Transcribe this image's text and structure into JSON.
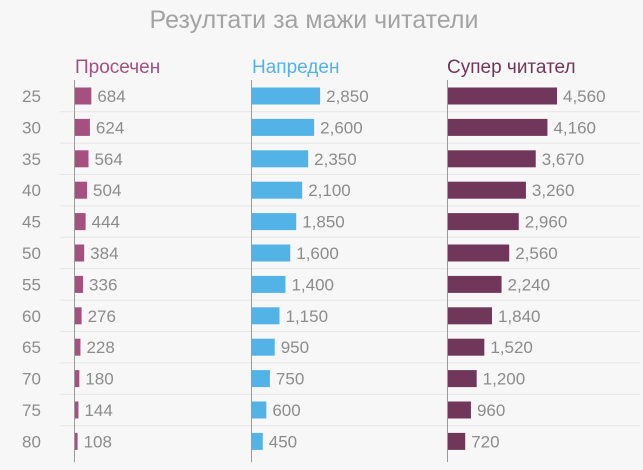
{
  "chart_data": {
    "type": "bar",
    "orientation": "horizontal",
    "layout": "small-multiples",
    "title": "Резултати за мажи читатели",
    "categories": [
      "25",
      "30",
      "35",
      "40",
      "45",
      "50",
      "55",
      "60",
      "65",
      "70",
      "75",
      "80"
    ],
    "series": [
      {
        "name": "Просечен",
        "color": "#a5507f",
        "values": [
          684,
          624,
          564,
          504,
          444,
          384,
          336,
          276,
          228,
          180,
          144,
          108
        ],
        "labels": [
          "684",
          "624",
          "564",
          "504",
          "444",
          "384",
          "336",
          "276",
          "228",
          "180",
          "144",
          "108"
        ]
      },
      {
        "name": "Напреден",
        "color": "#53b3e6",
        "values": [
          2850,
          2600,
          2350,
          2100,
          1850,
          1600,
          1400,
          1150,
          950,
          750,
          600,
          450
        ],
        "labels": [
          "2,850",
          "2,600",
          "2,350",
          "2,100",
          "1,850",
          "1,600",
          "1,400",
          "1,150",
          "950",
          "750",
          "600",
          "450"
        ]
      },
      {
        "name": "Супер читател",
        "color": "#70375a",
        "values": [
          4560,
          4160,
          3670,
          3260,
          2960,
          2560,
          2240,
          1840,
          1520,
          1200,
          960,
          720
        ],
        "labels": [
          "4,560",
          "4,160",
          "3,670",
          "3,260",
          "2,960",
          "2,560",
          "2,240",
          "1,840",
          "1,520",
          "1,200",
          "960",
          "720"
        ]
      }
    ]
  }
}
